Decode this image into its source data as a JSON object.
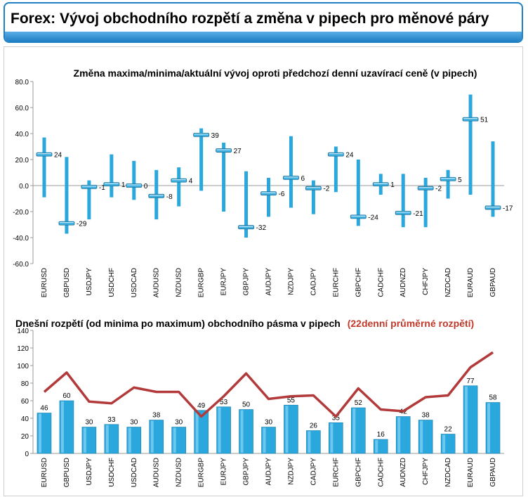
{
  "header": {
    "title": "Forex: Vývoj obchodního rozpětí a změna v pipech pro měnové páry"
  },
  "colors": {
    "accent": "#1f7fc4",
    "bar": "#2aa7dc",
    "marker": "#3fb0e0",
    "avg_line": "#b23a3a"
  },
  "chart_data": [
    {
      "type": "bar",
      "title": "Změna maxima/minima/aktuální vývoj oproti předchozí denní uzavírací ceně (v pipech)",
      "categories": [
        "EURUSD",
        "GBPUSD",
        "USDJPY",
        "USDCHF",
        "USDCAD",
        "AUDUSD",
        "NZDUSD",
        "EURGBP",
        "EURJPY",
        "GBPJPY",
        "AUDJPY",
        "NZDJPY",
        "CADJPY",
        "EURCHF",
        "GBPCHF",
        "CADCHF",
        "AUDNZD",
        "CHFJPY",
        "NZDCAD",
        "EURAUD",
        "GBPAUD"
      ],
      "series": [
        {
          "name": "",
          "high": [
            37,
            22,
            4,
            24,
            19,
            12,
            14,
            44,
            33,
            11,
            6,
            38,
            4,
            30,
            20,
            9,
            9,
            6,
            12,
            70,
            34
          ]
        },
        {
          "name": "",
          "low": [
            -9,
            -37,
            -26,
            -9,
            -11,
            -26,
            -16,
            -4,
            -20,
            -40,
            -24,
            -17,
            -22,
            -5,
            -31,
            -7,
            -32,
            -32,
            -10,
            -7,
            -24
          ]
        },
        {
          "name": "",
          "current": [
            24,
            -29,
            -1,
            1,
            0,
            -8,
            4,
            39,
            27,
            -32,
            -6,
            6,
            -2,
            24,
            -24,
            1,
            -21,
            -2,
            5,
            51,
            -17
          ]
        }
      ],
      "value_labels": [
        "24",
        "-29",
        "-1",
        "1",
        "0",
        "-8",
        "4",
        "39",
        "27",
        "-32",
        "-6",
        "6",
        "-2",
        "24",
        "-24",
        "1",
        "-21",
        "-2",
        "5",
        "51",
        "-17"
      ],
      "yticks": [
        "80.0",
        "60.0",
        "40.0",
        "20.0",
        "0.0",
        "-20.0",
        "-40.0",
        "-60.0"
      ],
      "ylim": [
        -60,
        80
      ],
      "xlabel": "",
      "ylabel": ""
    },
    {
      "type": "bar",
      "title": "Dnešní rozpětí (od minima po maximum) obchodního pásma v pipech",
      "subtitle": "(22denní průměrné rozpětí)",
      "categories": [
        "EURUSD",
        "GBPUSD",
        "USDJPY",
        "USDCHF",
        "USDCAD",
        "AUDUSD",
        "NZDUSD",
        "EURGBP",
        "EURJPY",
        "GBPJPY",
        "AUDJPY",
        "NZDJPY",
        "CADJPY",
        "EURCHF",
        "GBPCHF",
        "CADCHF",
        "AUDNZD",
        "CHFJPY",
        "NZDCAD",
        "EURAUD",
        "GBPAUD"
      ],
      "series": [
        {
          "name": "",
          "values": [
            46,
            60,
            30,
            33,
            30,
            38,
            30,
            49,
            53,
            50,
            30,
            55,
            26,
            35,
            52,
            16,
            42,
            38,
            22,
            77,
            58
          ]
        },
        {
          "name": "",
          "values": [
            70,
            92,
            59,
            57,
            75,
            70,
            70,
            42,
            65,
            91,
            62,
            65,
            66,
            42,
            74,
            50,
            48,
            64,
            66,
            98,
            115
          ]
        }
      ],
      "value_labels": [
        "46",
        "60",
        "30",
        "33",
        "30",
        "38",
        "30",
        "49",
        "53",
        "50",
        "30",
        "55",
        "26",
        "35",
        "52",
        "16",
        "42",
        "38",
        "22",
        "77",
        "58"
      ],
      "yticks": [
        "140",
        "120",
        "100",
        "80",
        "60",
        "40",
        "20",
        "0"
      ],
      "ylim": [
        0,
        140
      ],
      "xlabel": "",
      "ylabel": ""
    }
  ]
}
